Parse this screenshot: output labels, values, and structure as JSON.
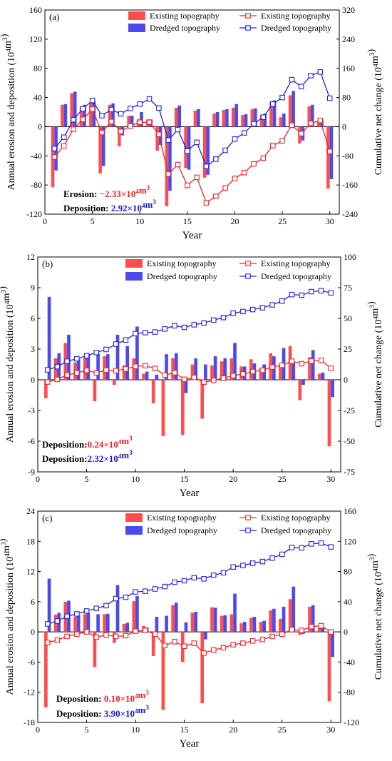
{
  "figure": {
    "xlabel": "Year",
    "ylabel_left": "Annual erosion and deposition (10⁴m³)",
    "ylabel_right": "Cumulative net change (10⁴m³)",
    "legend": {
      "bar_existing": "Existing  topography",
      "bar_dredged": "Dredged  topography",
      "line_existing": "Existing  topography",
      "line_dredged": "Dredged  topography"
    },
    "colors": {
      "existing": "#ff4d4d",
      "dredged": "#4a4aef",
      "existing_line": "#ee2222",
      "dredged_line": "#2222dd"
    }
  },
  "chart_data": [
    {
      "type": "bar",
      "panel_label": "(a)",
      "x": [
        1,
        2,
        3,
        4,
        5,
        6,
        7,
        8,
        9,
        10,
        11,
        12,
        13,
        14,
        15,
        16,
        17,
        18,
        19,
        20,
        21,
        22,
        23,
        24,
        25,
        26,
        27,
        28,
        29,
        30
      ],
      "xlim": [
        0,
        31
      ],
      "xticks": [
        0,
        5,
        10,
        15,
        20,
        25,
        30
      ],
      "ylim_left": [
        -120,
        160
      ],
      "yticks_left": [
        -120,
        -80,
        -40,
        0,
        40,
        80,
        120,
        160
      ],
      "ylim_right": [
        -240,
        320
      ],
      "yticks_right": [
        -240,
        -160,
        -80,
        0,
        80,
        160,
        240,
        320
      ],
      "bar_series": [
        {
          "name": "Existing  topography",
          "values": [
            -83,
            30,
            46,
            27,
            33,
            -64,
            30,
            -27,
            15,
            10,
            10,
            -33,
            -109,
            26,
            -57,
            22,
            -70,
            18,
            23,
            26,
            16,
            24,
            16,
            34,
            13,
            43,
            -23,
            28,
            8,
            -85
          ]
        },
        {
          "name": "Dredged  topography",
          "values": [
            -60,
            31,
            48,
            30,
            35,
            -54,
            32,
            -12,
            15,
            20,
            10,
            -25,
            -88,
            29,
            -59,
            24,
            -66,
            20,
            24,
            31,
            17,
            25,
            18,
            36,
            18,
            49,
            -19,
            30,
            10,
            -72
          ]
        }
      ],
      "line_series": [
        {
          "name": "Existing  topography",
          "values": [
            -83,
            -53,
            -7,
            20,
            48,
            -16,
            14,
            -13,
            2,
            12,
            12,
            -21,
            -130,
            -104,
            -161,
            -139,
            -209,
            -191,
            -168,
            -142,
            -126,
            -102,
            -86,
            -52,
            -39,
            4,
            -19,
            9,
            17,
            -68
          ]
        },
        {
          "name": "Dredged  topography",
          "values": [
            -60,
            -29,
            19,
            49,
            72,
            30,
            47,
            35,
            50,
            62,
            76,
            51,
            -37,
            -8,
            -67,
            -43,
            -109,
            -89,
            -65,
            -34,
            -17,
            8,
            26,
            62,
            80,
            129,
            110,
            140,
            150,
            78
          ]
        }
      ],
      "annotations": [
        {
          "label": "Erosion:",
          "value": " −2.33×10⁴m³",
          "color": "#ee2222"
        },
        {
          "label": "Deposition:",
          "value": "  2.92×10⁴m³",
          "color": "#1a1acc"
        }
      ]
    },
    {
      "type": "bar",
      "panel_label": "(b)",
      "x": [
        1,
        2,
        3,
        4,
        5,
        6,
        7,
        8,
        9,
        10,
        11,
        12,
        13,
        14,
        15,
        16,
        17,
        18,
        19,
        20,
        21,
        22,
        23,
        24,
        25,
        26,
        27,
        28,
        29,
        30
      ],
      "xlim": [
        0,
        31
      ],
      "xticks": [
        0,
        5,
        10,
        15,
        20,
        25,
        30
      ],
      "ylim_left": [
        -9,
        12
      ],
      "yticks_left": [
        -9,
        -6,
        -3,
        0,
        3,
        6,
        9,
        12
      ],
      "ylim_right": [
        -75,
        100
      ],
      "yticks_right": [
        -75,
        -50,
        -25,
        0,
        25,
        50,
        75,
        100
      ],
      "bar_series": [
        {
          "name": "Existing  topography",
          "values": [
            -1.8,
            2.1,
            3.6,
            1.7,
            2.1,
            -2.1,
            2.3,
            -0.5,
            1.4,
            2.1,
            0.6,
            -2.3,
            -5.5,
            2.1,
            -5.4,
            1.5,
            -3.8,
            1.4,
            1.8,
            2.1,
            1.3,
            2.0,
            1.1,
            2.6,
            1.4,
            3.3,
            -2.0,
            2.2,
            0.6,
            -6.5
          ]
        },
        {
          "name": "Dredged  topography",
          "values": [
            8.1,
            2.6,
            4.4,
            2.0,
            2.5,
            2.6,
            2.5,
            4.4,
            3.3,
            5.2,
            0.8,
            0.5,
            2.5,
            2.6,
            -1.3,
            2.1,
            1.5,
            2.3,
            2.1,
            3.6,
            1.3,
            1.6,
            1.5,
            2.3,
            3.1,
            1.7,
            -0.5,
            2.9,
            0.7,
            -1.7
          ]
        }
      ],
      "line_series": [
        {
          "name": "Existing  topography",
          "values": [
            -1.8,
            0.3,
            3.9,
            5.6,
            7.7,
            5.6,
            7.9,
            7.4,
            8.8,
            10.9,
            11.5,
            9.2,
            3.7,
            5.8,
            0.4,
            1.9,
            -1.9,
            -0.5,
            1.3,
            3.4,
            4.7,
            6.7,
            7.8,
            10.4,
            11.8,
            15.1,
            13.1,
            15.3,
            15.9,
            9.4
          ]
        },
        {
          "name": "Dredged  topography",
          "values": [
            8.1,
            10.7,
            15.1,
            17.1,
            19.6,
            22.2,
            24.7,
            29.1,
            32.4,
            37.6,
            38.4,
            38.9,
            41.4,
            44.0,
            42.7,
            44.8,
            46.3,
            48.6,
            50.7,
            54.3,
            55.6,
            57.2,
            58.7,
            61.0,
            64.1,
            69.4,
            68.9,
            71.8,
            72.5,
            70.8
          ]
        }
      ],
      "annotations": [
        {
          "label": "Deposition:",
          "value": "0.24×10⁴m³",
          "color": "#ee2222"
        },
        {
          "label": "Deposition:",
          "value": "2.32×10⁴m³",
          "color": "#1a1acc"
        }
      ]
    },
    {
      "type": "bar",
      "panel_label": "(c)",
      "x": [
        1,
        2,
        3,
        4,
        5,
        6,
        7,
        8,
        9,
        10,
        11,
        12,
        13,
        14,
        15,
        16,
        17,
        18,
        19,
        20,
        21,
        22,
        23,
        24,
        25,
        26,
        27,
        28,
        29,
        30
      ],
      "xlim": [
        0,
        31
      ],
      "xticks": [
        0,
        5,
        10,
        15,
        20,
        25,
        30
      ],
      "ylim_left": [
        -18,
        24
      ],
      "yticks_left": [
        -18,
        -12,
        -6,
        0,
        6,
        12,
        18,
        24
      ],
      "ylim_right": [
        -120,
        160
      ],
      "yticks_right": [
        -120,
        -80,
        -40,
        0,
        40,
        80,
        120,
        160
      ],
      "bar_series": [
        {
          "name": "Existing  topography",
          "values": [
            -15.0,
            3.4,
            6.0,
            3.0,
            3.5,
            -7.0,
            3.5,
            -2.2,
            1.6,
            6.1,
            1.2,
            -4.8,
            -15.5,
            5.3,
            -6.0,
            3.8,
            -14.2,
            4.9,
            3.2,
            3.5,
            1.7,
            2.8,
            2.0,
            4.3,
            2.6,
            6.5,
            -0.6,
            5.0,
            0.8,
            -13.8
          ]
        },
        {
          "name": "Dredged  topography",
          "values": [
            10.6,
            3.8,
            6.2,
            3.3,
            3.8,
            3.5,
            3.6,
            9.3,
            1.8,
            7.1,
            0.9,
            3.0,
            3.2,
            5.8,
            1.9,
            4.0,
            -1.5,
            4.8,
            3.3,
            7.6,
            2.0,
            3.0,
            2.2,
            4.6,
            5.0,
            9.0,
            -0.4,
            5.3,
            0.9,
            -5.0
          ]
        }
      ],
      "line_series": [
        {
          "name": "Existing  topography",
          "values": [
            -14,
            -11,
            -6,
            -3,
            0,
            -7,
            -4,
            -6,
            -5,
            1,
            2,
            -3,
            -18,
            -13,
            -19,
            -15,
            -28,
            -24,
            -21,
            -17,
            -15,
            -12,
            -10,
            -6,
            -3,
            3,
            2,
            7,
            8,
            0
          ]
        },
        {
          "name": "Dredged  topography",
          "values": [
            10.6,
            14.4,
            20.6,
            23.9,
            27.7,
            31.2,
            34.8,
            44.1,
            45.9,
            53.0,
            53.9,
            56.9,
            60.1,
            65.9,
            67.8,
            71.8,
            70.3,
            75.1,
            78.4,
            86.0,
            88.0,
            91.0,
            93.2,
            97.8,
            102.8,
            111.8,
            111.4,
            116.7,
            117.6,
            112.6
          ]
        }
      ],
      "annotations": [
        {
          "label": "Deposition:",
          "value": " 0.10×10⁴m³",
          "color": "#ee2222"
        },
        {
          "label": "Deposition:",
          "value": " 3.90×10⁴m³",
          "color": "#1a1acc"
        }
      ]
    }
  ]
}
